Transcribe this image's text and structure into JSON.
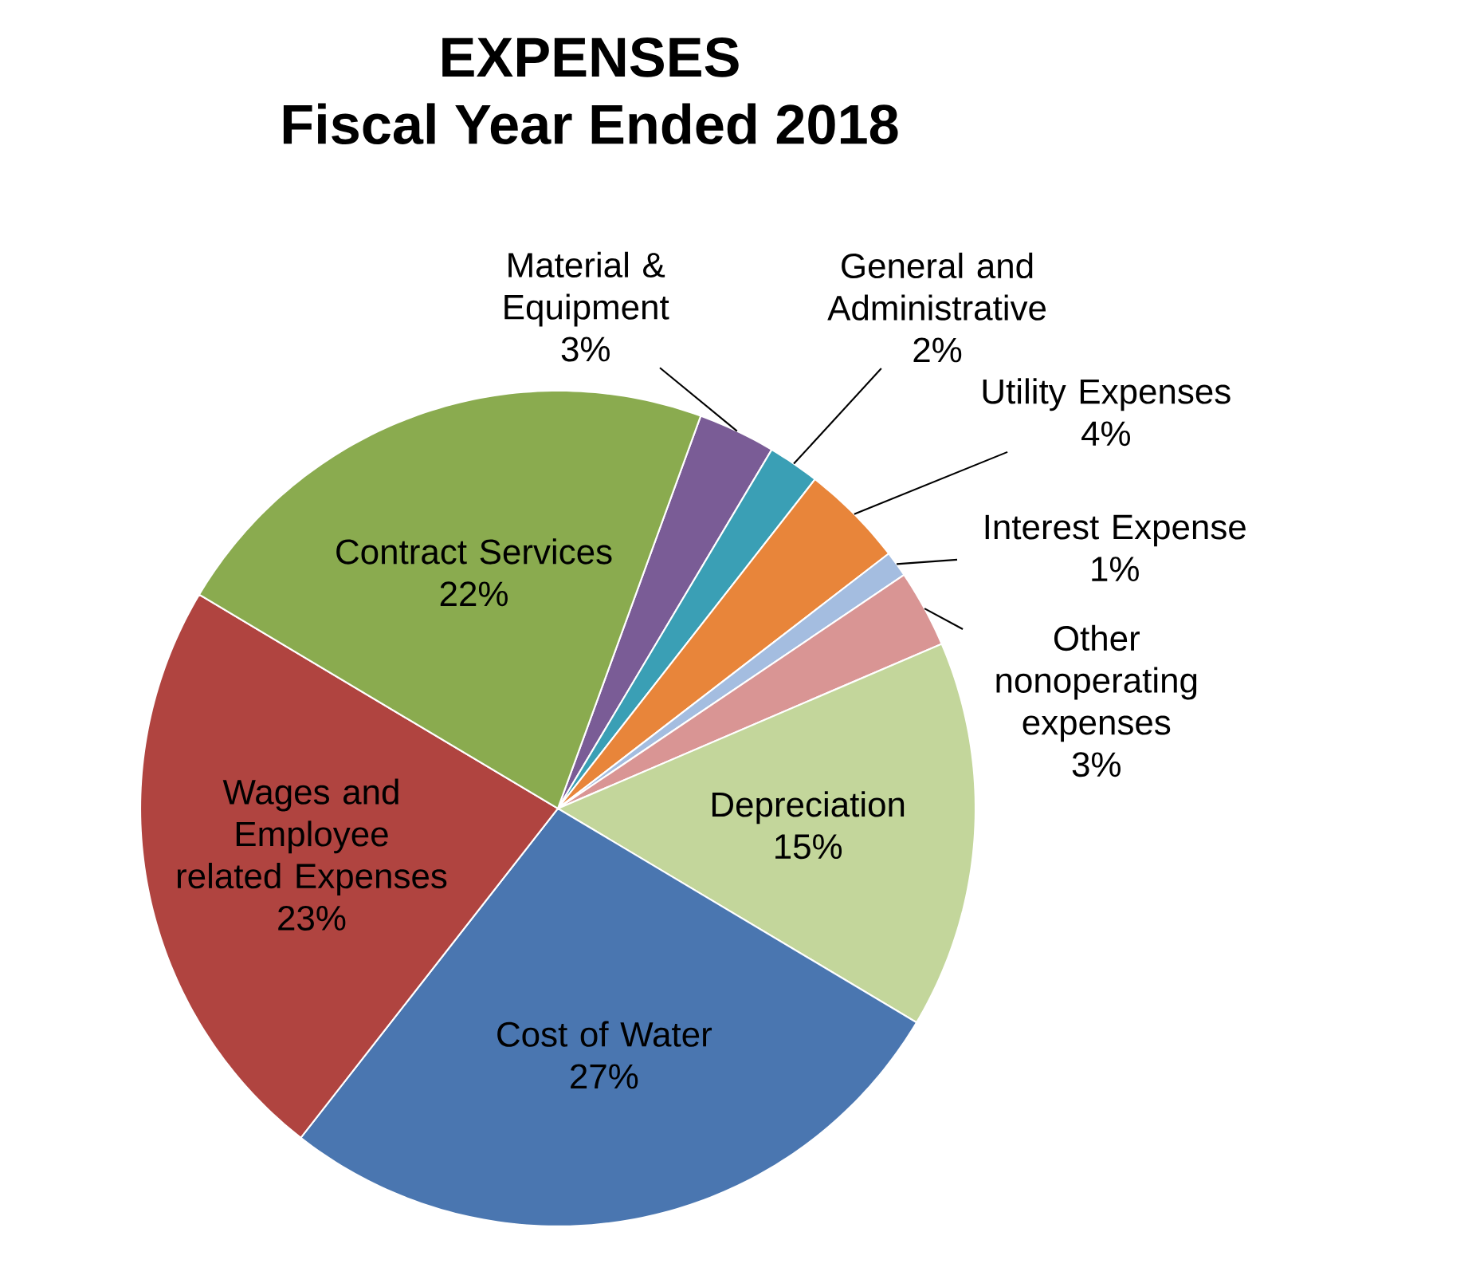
{
  "chart_data": {
    "type": "pie",
    "title": "EXPENSES",
    "subtitle": "Fiscal Year Ended 2018",
    "categories": [
      "Material & Equipment",
      "General and Administrative",
      "Utility Expenses",
      "Interest Expense",
      "Other nonoperating expenses",
      "Depreciation",
      "Cost of Water",
      "Wages and Employee related Expenses",
      "Contract Services"
    ],
    "values": [
      3,
      2,
      4,
      1,
      3,
      15,
      27,
      23,
      22
    ],
    "value_labels": [
      "3%",
      "2%",
      "4%",
      "1%",
      "3%",
      "15%",
      "27%",
      "23%",
      "22%"
    ],
    "colors": [
      "#7a5c96",
      "#3a9fb5",
      "#e8853a",
      "#a4bde0",
      "#d99594",
      "#c3d69b",
      "#4a76b0",
      "#b04440",
      "#8aab4f"
    ]
  }
}
